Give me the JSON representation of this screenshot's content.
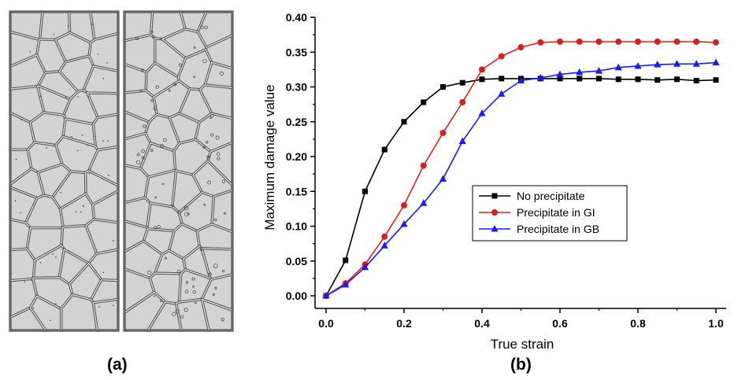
{
  "panels": {
    "a_label": "(a)",
    "b_label": "(b)"
  },
  "colors": {
    "grain_fill": "#d3d3d3",
    "grain_boundary": "#555555",
    "series_none": "#000000",
    "series_gi": "#d62020",
    "series_gb": "#1a1aff"
  },
  "chart_data": {
    "type": "line",
    "xlabel": "True strain",
    "ylabel": "Maximum damage value",
    "xlim": [
      0,
      1.0
    ],
    "ylim": [
      0,
      0.4
    ],
    "x_ticks": [
      "0.0",
      "0.2",
      "0.4",
      "0.6",
      "0.8",
      "1.0"
    ],
    "y_ticks": [
      "0.00",
      "0.05",
      "0.10",
      "0.15",
      "0.20",
      "0.25",
      "0.30",
      "0.35",
      "0.40"
    ],
    "legend_position": "center-right",
    "grid": false,
    "x": [
      0,
      0.05,
      0.1,
      0.15,
      0.2,
      0.25,
      0.3,
      0.35,
      0.4,
      0.45,
      0.5,
      0.55,
      0.6,
      0.65,
      0.7,
      0.75,
      0.8,
      0.85,
      0.9,
      0.95,
      1.0
    ],
    "series": [
      {
        "name": "No precipitate",
        "marker": "square",
        "color": "#000000",
        "values": [
          0,
          0.051,
          0.15,
          0.21,
          0.25,
          0.278,
          0.3,
          0.306,
          0.311,
          0.312,
          0.312,
          0.312,
          0.312,
          0.312,
          0.312,
          0.311,
          0.311,
          0.31,
          0.311,
          0.309,
          0.31
        ]
      },
      {
        "name": "Precipitate in GI",
        "marker": "circle",
        "color": "#d62020",
        "values": [
          0,
          0.018,
          0.045,
          0.085,
          0.13,
          0.187,
          0.234,
          0.278,
          0.325,
          0.344,
          0.357,
          0.364,
          0.365,
          0.365,
          0.365,
          0.365,
          0.365,
          0.365,
          0.365,
          0.365,
          0.364
        ]
      },
      {
        "name": "Precipitate in GB",
        "marker": "triangle",
        "color": "#1a1aff",
        "values": [
          0,
          0.016,
          0.041,
          0.072,
          0.103,
          0.133,
          0.168,
          0.222,
          0.262,
          0.29,
          0.309,
          0.313,
          0.318,
          0.321,
          0.323,
          0.328,
          0.33,
          0.332,
          0.333,
          0.333,
          0.335
        ]
      }
    ]
  }
}
